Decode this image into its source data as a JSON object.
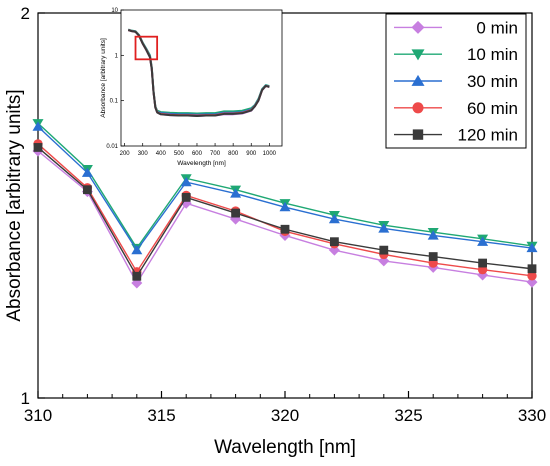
{
  "chart_data": [
    {
      "type": "line",
      "title": "",
      "xlabel": "Wavelength [nm]",
      "ylabel": "Absorbance [arbitrary units]",
      "xlim": [
        310,
        330
      ],
      "ylim": [
        1,
        2
      ],
      "y_scale": "log",
      "x_ticks": [
        310,
        315,
        320,
        325,
        330
      ],
      "y_ticks": [
        1,
        2
      ],
      "grid": false,
      "legend_position": "top-right",
      "x": [
        310,
        312,
        314,
        316,
        318,
        320,
        322,
        324,
        326,
        328,
        330
      ],
      "series": [
        {
          "name": "0 min",
          "color": "#c77fe0",
          "marker": "diamond",
          "values": [
            1.56,
            1.45,
            1.23,
            1.42,
            1.38,
            1.34,
            1.305,
            1.28,
            1.265,
            1.248,
            1.232
          ]
        },
        {
          "name": "10 min",
          "color": "#1fa874",
          "marker": "triangle-down",
          "values": [
            1.64,
            1.51,
            1.31,
            1.485,
            1.455,
            1.42,
            1.39,
            1.365,
            1.348,
            1.332,
            1.315
          ]
        },
        {
          "name": "30 min",
          "color": "#2a6fd1",
          "marker": "triangle-up",
          "values": [
            1.63,
            1.5,
            1.305,
            1.475,
            1.445,
            1.41,
            1.38,
            1.357,
            1.34,
            1.325,
            1.31
          ]
        },
        {
          "name": "60 min",
          "color": "#ee4a4a",
          "marker": "circle",
          "values": [
            1.58,
            1.46,
            1.255,
            1.44,
            1.4,
            1.35,
            1.32,
            1.295,
            1.275,
            1.26,
            1.246
          ]
        },
        {
          "name": "120 min",
          "color": "#3a3a3a",
          "marker": "square",
          "values": [
            1.57,
            1.455,
            1.245,
            1.435,
            1.395,
            1.355,
            1.325,
            1.305,
            1.29,
            1.275,
            1.262
          ]
        }
      ]
    },
    {
      "type": "line",
      "title": "",
      "xlabel": "Wavelength [nm]",
      "ylabel": "Absorbance [arbitrary units]",
      "xlim": [
        180,
        1070
      ],
      "ylim": [
        0.01,
        10
      ],
      "y_scale": "log",
      "x_ticks": [
        200,
        300,
        400,
        500,
        600,
        700,
        800,
        900,
        1000
      ],
      "y_ticks": [
        0.01,
        0.1,
        1,
        10
      ],
      "y_tick_labels": [
        "0.01",
        "0.1",
        "1",
        "10"
      ],
      "highlight_box": {
        "x_range": [
          310,
          330
        ],
        "y_range": [
          1,
          2
        ],
        "color": "#e02020"
      },
      "x": [
        220,
        240,
        260,
        280,
        300,
        320,
        340,
        350,
        360,
        370,
        380,
        400,
        450,
        500,
        550,
        600,
        650,
        700,
        750,
        800,
        850,
        900,
        920,
        940,
        960,
        980,
        1000
      ],
      "series": [
        {
          "name": "0 min",
          "color": "#c77fe0",
          "values": [
            3.6,
            3.4,
            3.3,
            2.7,
            1.8,
            1.3,
            0.9,
            0.5,
            0.15,
            0.07,
            0.055,
            0.05,
            0.048,
            0.047,
            0.047,
            0.046,
            0.047,
            0.047,
            0.05,
            0.05,
            0.052,
            0.06,
            0.075,
            0.1,
            0.17,
            0.21,
            0.2
          ]
        },
        {
          "name": "10 min",
          "color": "#1fa874",
          "values": [
            3.7,
            3.5,
            3.4,
            2.8,
            1.9,
            1.4,
            1.0,
            0.55,
            0.16,
            0.075,
            0.06,
            0.056,
            0.054,
            0.053,
            0.053,
            0.052,
            0.053,
            0.053,
            0.058,
            0.058,
            0.06,
            0.068,
            0.08,
            0.11,
            0.18,
            0.22,
            0.21
          ]
        },
        {
          "name": "30 min",
          "color": "#2a6fd1",
          "values": [
            3.65,
            3.45,
            3.35,
            2.75,
            1.85,
            1.35,
            0.95,
            0.52,
            0.155,
            0.072,
            0.057,
            0.053,
            0.051,
            0.05,
            0.05,
            0.049,
            0.05,
            0.05,
            0.054,
            0.054,
            0.056,
            0.064,
            0.078,
            0.105,
            0.175,
            0.215,
            0.205
          ]
        },
        {
          "name": "60 min",
          "color": "#ee4a4a",
          "values": [
            3.62,
            3.42,
            3.32,
            2.72,
            1.82,
            1.32,
            0.92,
            0.51,
            0.152,
            0.071,
            0.056,
            0.051,
            0.049,
            0.048,
            0.048,
            0.047,
            0.048,
            0.048,
            0.052,
            0.052,
            0.054,
            0.062,
            0.076,
            0.102,
            0.172,
            0.212,
            0.202
          ]
        },
        {
          "name": "120 min",
          "color": "#3a3a3a",
          "values": [
            3.61,
            3.41,
            3.31,
            2.71,
            1.81,
            1.31,
            0.91,
            0.505,
            0.151,
            0.07,
            0.055,
            0.05,
            0.048,
            0.047,
            0.047,
            0.046,
            0.047,
            0.047,
            0.051,
            0.051,
            0.053,
            0.061,
            0.075,
            0.101,
            0.171,
            0.211,
            0.201
          ]
        }
      ]
    }
  ]
}
